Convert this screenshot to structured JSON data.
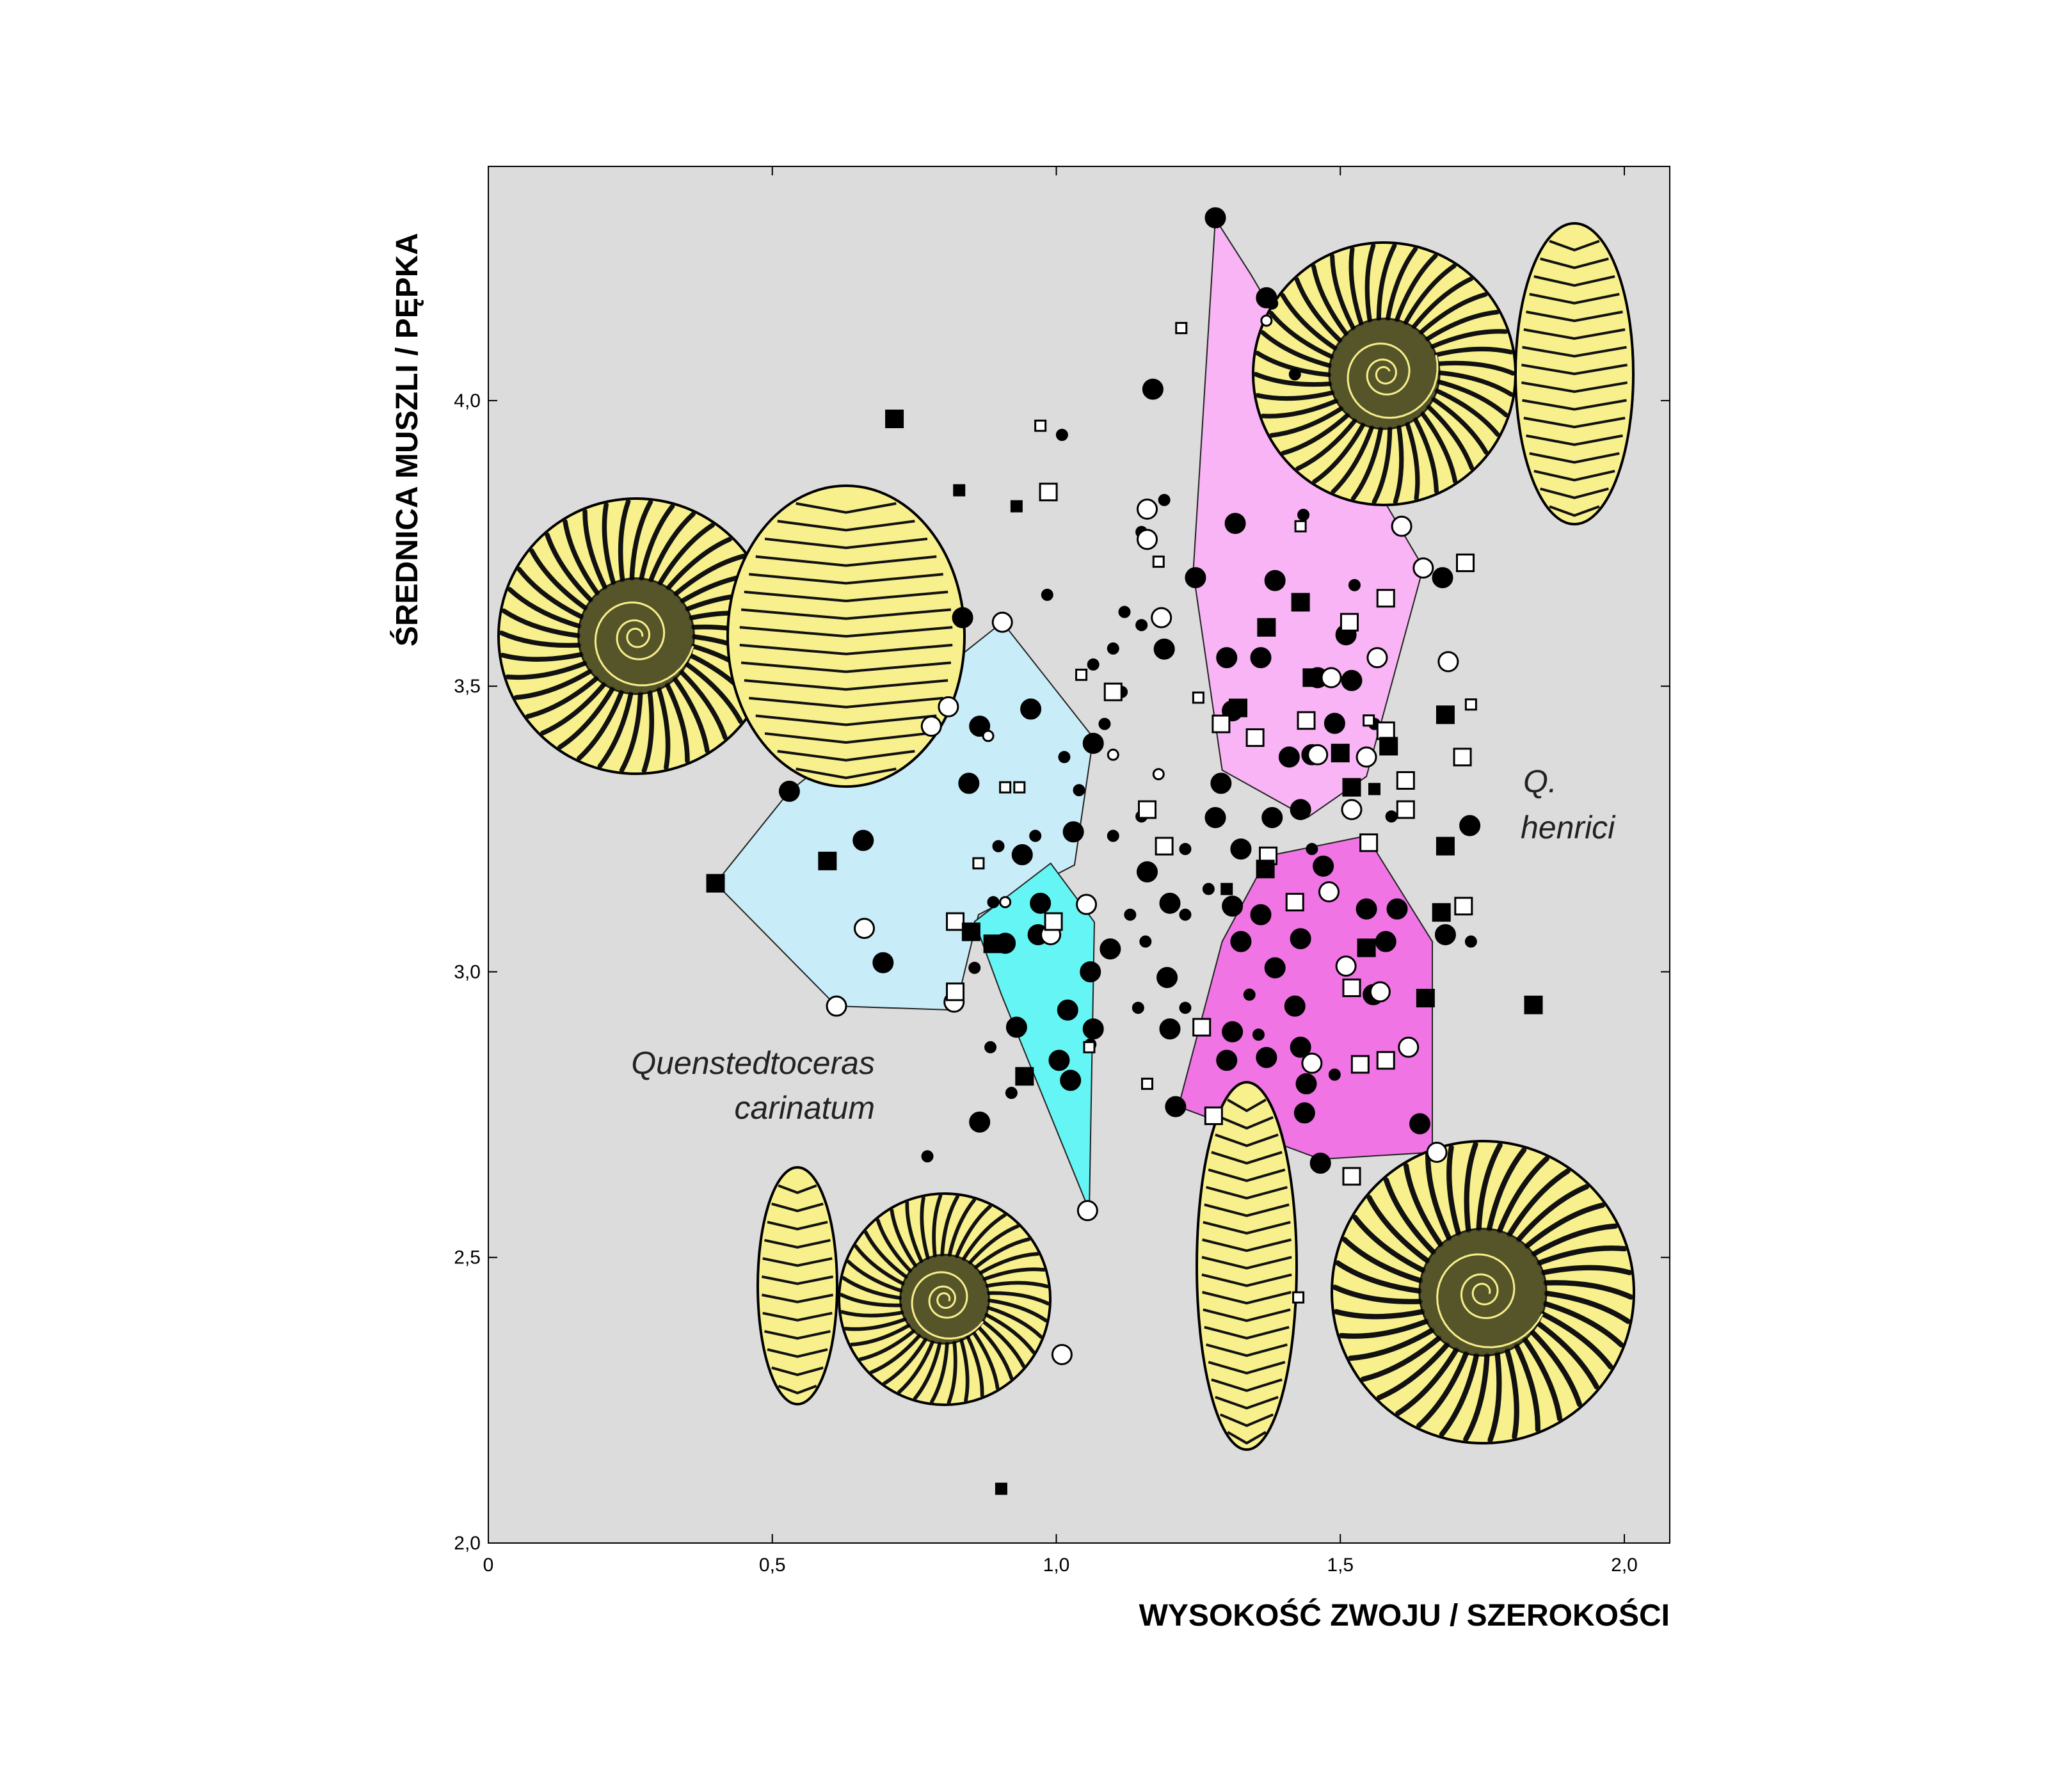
{
  "chart_data": {
    "type": "scatter",
    "xlabel": "WYSOKOŚĆ ZWOJU / SZEROKOŚCI",
    "ylabel": "ŚREDNICA MUSZLI / PĘPKA",
    "annotations": [
      "Quenstedtoceras",
      "carinatum",
      "Q.",
      "henrici"
    ],
    "background": "#dcdcdc",
    "xlim": [
      0,
      2.08
    ],
    "ylim": [
      2.0,
      4.41
    ],
    "xticks": [
      0,
      {
        "value": 0.5,
        "label": "0,5"
      },
      {
        "value": 1.0,
        "label": "1,0"
      },
      {
        "value": 1.5,
        "label": "1,5"
      },
      {
        "value": 2.0,
        "label": "2,0"
      }
    ],
    "yticks": [
      {
        "value": 2.0,
        "label": "2,0"
      },
      {
        "value": 2.5,
        "label": "2,5"
      },
      {
        "value": 3.0,
        "label": "3,0"
      },
      {
        "value": 3.5,
        "label": "3,5"
      },
      {
        "value": 4.0,
        "label": "4,0"
      }
    ],
    "regions": [
      {
        "color": "#c8ecf8",
        "x": [
          0.4,
          0.53,
          0.905,
          1.065,
          1.032,
          0.863,
          0.822,
          0.613
        ],
        "y": [
          3.155,
          3.316,
          3.612,
          3.41,
          3.187,
          3.1,
          2.933,
          2.94
        ]
      },
      {
        "color": "#66f5f5",
        "x": [
          0.99,
          1.067,
          1.058,
          0.903,
          0.856
        ],
        "y": [
          3.19,
          3.087,
          2.582,
          2.961,
          3.088
        ]
      },
      {
        "color": "#f8b4f4",
        "x": [
          1.28,
          1.343,
          1.646,
          1.546,
          1.442,
          1.292,
          1.241
        ],
        "y": [
          4.318,
          4.22,
          3.708,
          3.342,
          3.27,
          3.353,
          3.7
        ]
      },
      {
        "color": "#f074e4",
        "x": [
          1.546,
          1.662,
          1.662,
          1.465,
          1.215,
          1.292,
          1.373
        ],
        "y": [
          3.238,
          3.053,
          2.684,
          2.672,
          2.764,
          3.053,
          3.203
        ]
      }
    ],
    "series": [
      {
        "marker": "circle",
        "fill": "#000000",
        "size": "large",
        "x": [
          1.28,
          1.17,
          1.37,
          1.315,
          1.245,
          1.385,
          1.3,
          1.36,
          1.31,
          1.51,
          1.46,
          1.49,
          1.52,
          1.68,
          0.835,
          0.955,
          0.865,
          0.53,
          0.846,
          0.66,
          0.695,
          1.065,
          1.03,
          0.94,
          0.972,
          0.91,
          0.968,
          1.06,
          1.02,
          0.93,
          1.065,
          1.005,
          1.025,
          0.865,
          1.095,
          1.19,
          1.16,
          1.2,
          1.195,
          1.2,
          1.21,
          1.29,
          1.28,
          1.325,
          1.36,
          1.31,
          1.325,
          1.385,
          1.43,
          1.42,
          1.31,
          1.3,
          1.37,
          1.43,
          1.44,
          1.437,
          1.465,
          1.546,
          1.58,
          1.6,
          1.558,
          1.64,
          1.728,
          1.685,
          1.47,
          1.43,
          1.45,
          1.38,
          1.41
        ],
        "y": [
          4.32,
          4.02,
          4.18,
          3.785,
          3.69,
          3.685,
          3.55,
          3.55,
          3.457,
          3.59,
          3.515,
          3.435,
          3.51,
          3.69,
          3.62,
          3.46,
          3.43,
          3.316,
          3.33,
          3.23,
          3.016,
          3.4,
          3.245,
          3.205,
          3.12,
          3.05,
          3.065,
          3.0,
          2.933,
          2.903,
          2.9,
          2.845,
          2.81,
          2.737,
          3.04,
          3.565,
          3.175,
          3.12,
          2.99,
          2.9,
          2.764,
          3.33,
          3.27,
          3.215,
          3.1,
          3.115,
          3.053,
          3.007,
          3.058,
          2.94,
          2.895,
          2.845,
          2.85,
          2.868,
          2.804,
          2.753,
          2.665,
          3.11,
          3.053,
          3.11,
          2.96,
          2.734,
          3.256,
          3.065,
          3.185,
          3.284,
          3.38,
          3.27,
          3.376
        ]
      },
      {
        "marker": "circle",
        "fill": "#000000",
        "size": "small",
        "x": [
          1.01,
          0.984,
          1.19,
          1.15,
          1.12,
          1.15,
          1.1,
          1.065,
          1.115,
          1.085,
          1.014,
          1.04,
          0.963,
          0.898,
          0.889,
          0.856,
          0.884,
          0.921,
          1.06,
          0.773,
          1.1,
          1.15,
          1.227,
          1.227,
          1.13,
          1.157,
          1.268,
          1.144,
          1.227,
          1.34,
          1.356,
          1.42,
          1.435,
          1.525,
          1.56,
          1.59,
          1.73,
          1.45,
          1.49,
          1.38
        ],
        "y": [
          3.94,
          3.66,
          3.826,
          3.77,
          3.63,
          3.607,
          3.566,
          3.538,
          3.49,
          3.434,
          3.376,
          3.318,
          3.238,
          3.22,
          3.122,
          3.007,
          2.868,
          2.788,
          2.873,
          2.677,
          3.238,
          3.272,
          3.215,
          3.1,
          3.1,
          3.053,
          3.145,
          2.937,
          2.937,
          2.96,
          2.89,
          4.046,
          3.8,
          3.677,
          3.434,
          3.272,
          3.053,
          3.215,
          2.82,
          4.17
        ]
      },
      {
        "marker": "circle",
        "fill": "#ffffff",
        "size": "large",
        "x": [
          0.905,
          0.81,
          0.78,
          0.662,
          0.613,
          0.82,
          1.053,
          0.99,
          1.608,
          1.646,
          1.69,
          1.565,
          1.484,
          1.546,
          1.46,
          1.52,
          1.48,
          1.51,
          1.57,
          1.62,
          1.67,
          1.45,
          1.055,
          1.01,
          1.16,
          1.16,
          1.185
        ],
        "y": [
          3.612,
          3.464,
          3.43,
          3.076,
          2.94,
          2.947,
          3.118,
          3.065,
          3.78,
          3.707,
          3.543,
          3.55,
          3.515,
          3.376,
          3.38,
          3.284,
          3.14,
          3.01,
          2.965,
          2.868,
          2.684,
          2.84,
          2.582,
          2.33,
          3.81,
          3.757,
          3.62
        ]
      },
      {
        "marker": "circle",
        "fill": "#ffffff",
        "size": "small",
        "x": [
          1.37,
          0.88,
          0.91,
          1.1,
          1.18
        ],
        "y": [
          4.14,
          3.413,
          3.122,
          3.38,
          3.346
        ]
      },
      {
        "marker": "square",
        "fill": "#ffffff",
        "size": "large",
        "x": [
          0.986,
          1.58,
          1.516,
          1.72,
          1.715,
          1.615,
          1.58,
          1.615,
          1.717,
          1.44,
          1.42,
          1.52,
          1.58,
          1.535,
          1.52,
          1.256,
          1.277,
          1.19,
          1.16,
          1.29,
          1.35,
          1.1,
          0.822,
          0.822,
          0.995,
          1.55,
          1.373
        ],
        "y": [
          3.84,
          3.654,
          3.612,
          3.716,
          3.376,
          3.335,
          3.422,
          3.284,
          3.115,
          3.44,
          3.122,
          2.972,
          2.845,
          2.838,
          2.642,
          2.903,
          2.748,
          3.22,
          3.284,
          3.434,
          3.41,
          3.49,
          3.088,
          2.965,
          3.088,
          3.226,
          3.203
        ]
      },
      {
        "marker": "square",
        "fill": "#ffffff",
        "size": "small",
        "x": [
          0.972,
          1.22,
          1.43,
          1.18,
          1.25,
          1.044,
          0.91,
          0.935,
          0.863,
          1.16,
          1.058,
          1.426,
          1.73,
          1.55
        ],
        "y": [
          3.956,
          4.127,
          3.78,
          3.718,
          3.48,
          3.52,
          3.323,
          3.323,
          3.19,
          2.804,
          2.868,
          2.43,
          3.468,
          3.44
        ]
      },
      {
        "marker": "square",
        "fill": "#000000",
        "size": "large",
        "x": [
          0.715,
          0.4,
          0.597,
          0.85,
          0.888,
          0.944,
          1.43,
          1.37,
          1.45,
          1.32,
          1.5,
          1.585,
          1.52,
          1.685,
          1.685,
          1.678,
          1.65,
          1.546,
          1.368,
          1.84
        ],
        "y": [
          3.968,
          3.155,
          3.194,
          3.07,
          3.049,
          2.817,
          3.647,
          3.603,
          3.515,
          3.462,
          3.383,
          3.395,
          3.323,
          3.45,
          3.22,
          3.104,
          2.954,
          3.042,
          3.18,
          2.942
        ]
      },
      {
        "marker": "square",
        "fill": "#000000",
        "size": "small",
        "x": [
          0.829,
          0.93,
          0.903,
          1.3,
          1.56
        ],
        "y": [
          3.843,
          3.815,
          2.095,
          3.145,
          3.32
        ]
      }
    ]
  }
}
